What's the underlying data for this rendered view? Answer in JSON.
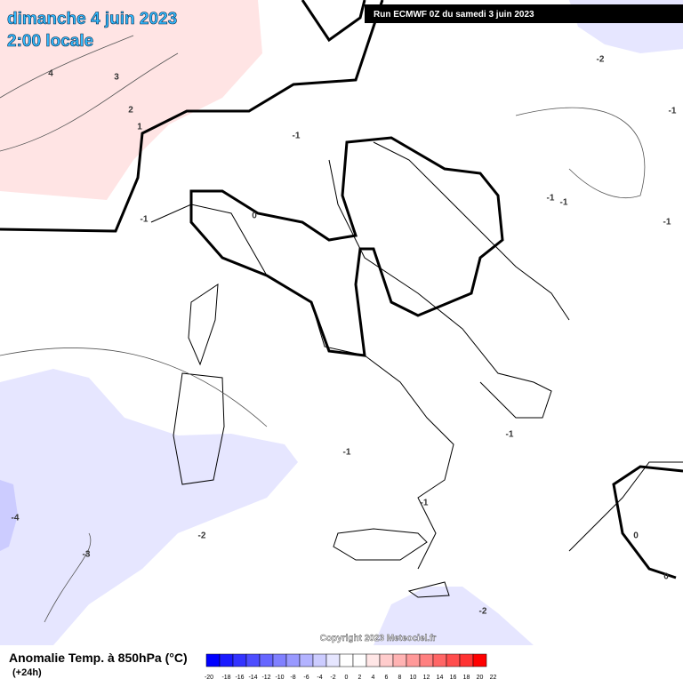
{
  "header": {
    "date": "dimanche 4 juin 2023",
    "time": "2:00 locale",
    "run": "Run ECMWF 0Z du samedi 3 juin 2023"
  },
  "map": {
    "copyright": "Copyright 2023 Meteociel.fr",
    "contour_labels": [
      4,
      3,
      2,
      1,
      -1,
      0,
      -1,
      -2,
      -1,
      -1,
      -1,
      -1,
      -1,
      -1,
      -1,
      -2,
      -3,
      -4,
      0,
      0,
      -2
    ]
  },
  "legend": {
    "title": "Anomalie Temp. à 850hPa (°C)",
    "subtitle": "(+24h)",
    "ticks": [
      -20,
      -18,
      -16,
      -14,
      -12,
      -10,
      -8,
      -6,
      -4,
      -2,
      0,
      2,
      4,
      6,
      8,
      10,
      12,
      14,
      16,
      18,
      20,
      22
    ],
    "colors": [
      "#0000ff",
      "#1a1aff",
      "#3333ff",
      "#4d4dff",
      "#6666ff",
      "#8080ff",
      "#9999ff",
      "#b3b3ff",
      "#ccccff",
      "#e6e6ff",
      "#ffffff",
      "#ffffff",
      "#ffe6e6",
      "#ffcccc",
      "#ffb3b3",
      "#ff9999",
      "#ff8080",
      "#ff6666",
      "#ff4d4d",
      "#ff3333",
      "#ff0000"
    ]
  }
}
